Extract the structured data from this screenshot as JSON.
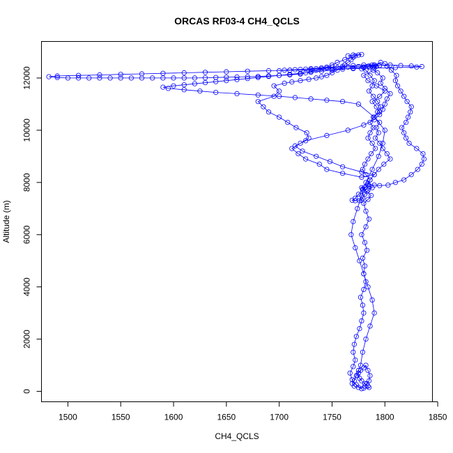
{
  "chart_data": {
    "type": "scatter",
    "title": "ORCAS RF03-4 CH4_QCLS",
    "xlabel": "CH4_QCLS",
    "ylabel": "Altitude (m)",
    "xlim": [
      1475,
      1845
    ],
    "ylim": [
      -400,
      13400
    ],
    "xticks": [
      1500,
      1550,
      1600,
      1650,
      1700,
      1750,
      1800,
      1850
    ],
    "yticks": [
      0,
      2000,
      4000,
      6000,
      8000,
      10000,
      12000
    ],
    "grid": false,
    "marker": "open-circle",
    "connected": true,
    "colors": {
      "series": "#0000ff",
      "axes": "#000000"
    },
    "series": [
      {
        "x": [
          1778,
          1773,
          1769,
          1767,
          1770,
          1772,
          1770,
          1771,
          1773,
          1776,
          1778,
          1780,
          1779,
          1777,
          1780,
          1782,
          1780,
          1781,
          1779,
          1783,
          1781,
          1778,
          1782,
          1785,
          1782,
          1780,
          1784,
          1787,
          1783,
          1779,
          1778,
          1781,
          1785,
          1788,
          1784,
          1781,
          1779,
          1778,
          1776,
          1772,
          1769,
          1772,
          1775,
          1779,
          1784,
          1786,
          1782,
          1779,
          1781,
          1784,
          1787,
          1791,
          1788,
          1784,
          1786,
          1789,
          1786,
          1789,
          1795,
          1792,
          1788,
          1795,
          1800,
          1792,
          1784,
          1780,
          1789,
          1792,
          1788,
          1784,
          1780,
          1778,
          1782,
          1786,
          1790,
          1788,
          1785,
          1789,
          1793,
          1796,
          1793,
          1790,
          1795,
          1792,
          1794,
          1791,
          1795,
          1798,
          1802,
          1805,
          1799,
          1794,
          1790,
          1786,
          1784,
          1790,
          1795,
          1803,
          1810,
          1818,
          1825,
          1831,
          1835,
          1837,
          1836,
          1830,
          1823,
          1820,
          1818,
          1816,
          1820,
          1822,
          1824,
          1825,
          1821,
          1818,
          1815,
          1812,
          1810,
          1811,
          1806,
          1802,
          1800,
          1796,
          1790,
          1786,
          1793,
          1798,
          1796,
          1800,
          1805,
          1802,
          1800,
          1798,
          1795,
          1790,
          1780,
          1765,
          1745,
          1725,
          1715,
          1722,
          1735,
          1748,
          1760,
          1778,
          1790,
          1778,
          1760,
          1745,
          1738,
          1725,
          1718,
          1712,
          1720,
          1728,
          1726,
          1716,
          1708,
          1700,
          1690,
          1685,
          1680,
          1695,
          1700,
          1695,
          1705,
          1712,
          1720,
          1728,
          1735,
          1740,
          1745,
          1750,
          1755,
          1760,
          1762,
          1765,
          1768,
          1770,
          1772,
          1775,
          1778,
          1770,
          1765,
          1770,
          1762,
          1755,
          1750,
          1745,
          1740,
          1735,
          1730,
          1725,
          1720,
          1710,
          1700,
          1690,
          1680,
          1670,
          1660,
          1650,
          1640,
          1630,
          1620,
          1610,
          1600,
          1590,
          1580,
          1570,
          1560,
          1550,
          1540,
          1530,
          1520,
          1510,
          1500,
          1490,
          1482,
          1490,
          1510,
          1530,
          1550,
          1570,
          1590,
          1610,
          1630,
          1650,
          1670,
          1690,
          1710,
          1730,
          1750,
          1770,
          1790,
          1810,
          1830,
          1835,
          1825,
          1815,
          1805,
          1795,
          1785,
          1775,
          1765,
          1755,
          1745,
          1735,
          1725,
          1715,
          1705,
          1700,
          1710,
          1720,
          1730,
          1740,
          1750,
          1760,
          1770,
          1780,
          1790,
          1795,
          1790,
          1780,
          1770,
          1760,
          1750,
          1740,
          1730,
          1720,
          1710,
          1700,
          1690,
          1680,
          1670,
          1660,
          1650,
          1640,
          1630,
          1620,
          1610,
          1600,
          1590,
          1595,
          1610,
          1625,
          1640,
          1660,
          1680,
          1700,
          1715,
          1730,
          1745,
          1760,
          1775,
          1790,
          1800,
          1798,
          1794,
          1788,
          1782,
          1778,
          1774,
          1770,
          1768,
          1772,
          1776,
          1780,
          1784,
          1788,
          1790,
          1786,
          1782,
          1779,
          1777,
          1775,
          1773,
          1771,
          1769,
          1771,
          1775,
          1780,
          1785,
          1784,
          1781,
          1778,
          1776,
          1774,
          1775,
          1777,
          1780,
          1782,
          1784,
          1786,
          1785,
          1783,
          1781
        ],
        "y": [
          100,
          250,
          450,
          700,
          950,
          1200,
          1500,
          1800,
          2100,
          2400,
          2700,
          3000,
          3300,
          3600,
          3900,
          4200,
          4500,
          4800,
          5100,
          5400,
          5700,
          6000,
          6300,
          6600,
          6900,
          7200,
          7350,
          7500,
          7650,
          7750,
          7800,
          7820,
          7850,
          7800,
          7700,
          7550,
          7400,
          7320,
          7300,
          7300,
          7320,
          7400,
          7550,
          7700,
          7900,
          8100,
          8300,
          8500,
          8700,
          8900,
          9100,
          9300,
          9500,
          9700,
          9900,
          10100,
          10300,
          10500,
          10700,
          10900,
          11100,
          11300,
          11500,
          11700,
          11900,
          12100,
          12300,
          12450,
          12500,
          12450,
          12400,
          12350,
          12300,
          12100,
          11900,
          11700,
          11500,
          11300,
          11100,
          10900,
          10700,
          10500,
          10300,
          10100,
          9900,
          9700,
          9500,
          9300,
          9100,
          8900,
          8700,
          8500,
          8300,
          8100,
          7950,
          7900,
          7880,
          7900,
          8000,
          8100,
          8300,
          8500,
          8700,
          8900,
          9100,
          9300,
          9500,
          9700,
          9900,
          10100,
          10300,
          10500,
          10700,
          10900,
          11100,
          11300,
          11500,
          11700,
          11900,
          12100,
          12300,
          12450,
          12550,
          12600,
          12500,
          12400,
          12200,
          12000,
          11800,
          11600,
          11400,
          11200,
          11000,
          10800,
          10600,
          10400,
          10200,
          10000,
          9800,
          9600,
          9400,
          9200,
          9000,
          8800,
          8600,
          8400,
          8300,
          8200,
          8350,
          8500,
          8700,
          8900,
          9100,
          9300,
          9500,
          9700,
          9900,
          10100,
          10300,
          10500,
          10700,
          10900,
          11100,
          11300,
          11500,
          11700,
          11800,
          11850,
          11900,
          11950,
          12000,
          12050,
          12100,
          12200,
          12300,
          12400,
          12500,
          12600,
          12700,
          12800,
          12850,
          12880,
          12900,
          12880,
          12850,
          12800,
          12700,
          12600,
          12500,
          12420,
          12350,
          12300,
          12250,
          12200,
          12150,
          12120,
          12100,
          12080,
          12060,
          12050,
          12040,
          12030,
          12020,
          12010,
          12000,
          12000,
          12000,
          12000,
          12000,
          12000,
          12000,
          12000,
          12000,
          12000,
          12000,
          12000,
          12000,
          12020,
          12050,
          12080,
          12100,
          12120,
          12140,
          12160,
          12180,
          12200,
          12220,
          12240,
          12260,
          12280,
          12300,
          12320,
          12340,
          12360,
          12380,
          12400,
          12420,
          12440,
          12460,
          12480,
          12500,
          12480,
          12460,
          12440,
          12420,
          12400,
          12380,
          12360,
          12340,
          12320,
          12300,
          12280,
          12300,
          12330,
          12360,
          12390,
          12420,
          12450,
          12480,
          12500,
          12500,
          12480,
          12450,
          12420,
          12380,
          12340,
          12300,
          12260,
          12220,
          12180,
          12140,
          12100,
          12060,
          12020,
          11980,
          11940,
          11900,
          11860,
          11820,
          11780,
          11740,
          11700,
          11650,
          11600,
          11550,
          11500,
          11450,
          11400,
          11350,
          11300,
          11250,
          11200,
          11150,
          11100,
          11000,
          10500,
          10000,
          9500,
          9000,
          8500,
          8000,
          7500,
          7000,
          6500,
          6000,
          5500,
          5000,
          4500,
          4000,
          3500,
          3000,
          2500,
          2000,
          1500,
          1000,
          800,
          600,
          400,
          300,
          200,
          150,
          120,
          150,
          200,
          300,
          400,
          500,
          600,
          700,
          800,
          900,
          1000,
          800,
          600,
          400,
          300,
          200
        ]
      }
    ]
  }
}
